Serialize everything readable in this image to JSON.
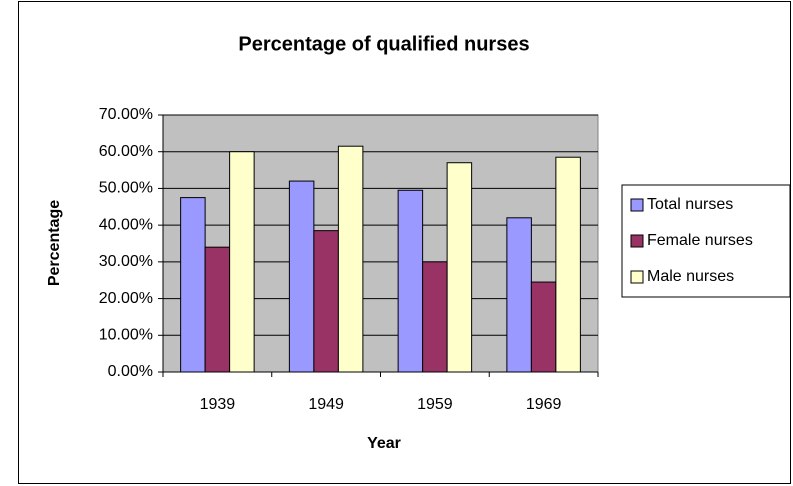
{
  "chart_data": {
    "type": "bar",
    "title": "Percentage of qualified nurses",
    "x_label": "Year",
    "y_label": "Percentage",
    "categories": [
      "1939",
      "1949",
      "1959",
      "1969"
    ],
    "series": [
      {
        "name": "Total nurses",
        "color": "#9999ff",
        "values": [
          47.5,
          52,
          49.5,
          42
        ]
      },
      {
        "name": "Female nurses",
        "color": "#993366",
        "values": [
          34,
          38.5,
          30,
          24.5
        ]
      },
      {
        "name": "Male nurses",
        "color": "#ffffcc",
        "values": [
          60,
          61.5,
          57,
          58.5
        ]
      }
    ],
    "ylim": [
      0,
      70
    ],
    "yticks": [
      {
        "value": 0,
        "label": "0.00%"
      },
      {
        "value": 10,
        "label": "10.00%"
      },
      {
        "value": 20,
        "label": "20.00%"
      },
      {
        "value": 30,
        "label": "30.00%"
      },
      {
        "value": 40,
        "label": "40.00%"
      },
      {
        "value": 50,
        "label": "50.00%"
      },
      {
        "value": 60,
        "label": "60.00%"
      },
      {
        "value": 70,
        "label": "70.00%"
      }
    ],
    "grid": true,
    "legend": "right",
    "plot_background": "#c0c0c0"
  }
}
